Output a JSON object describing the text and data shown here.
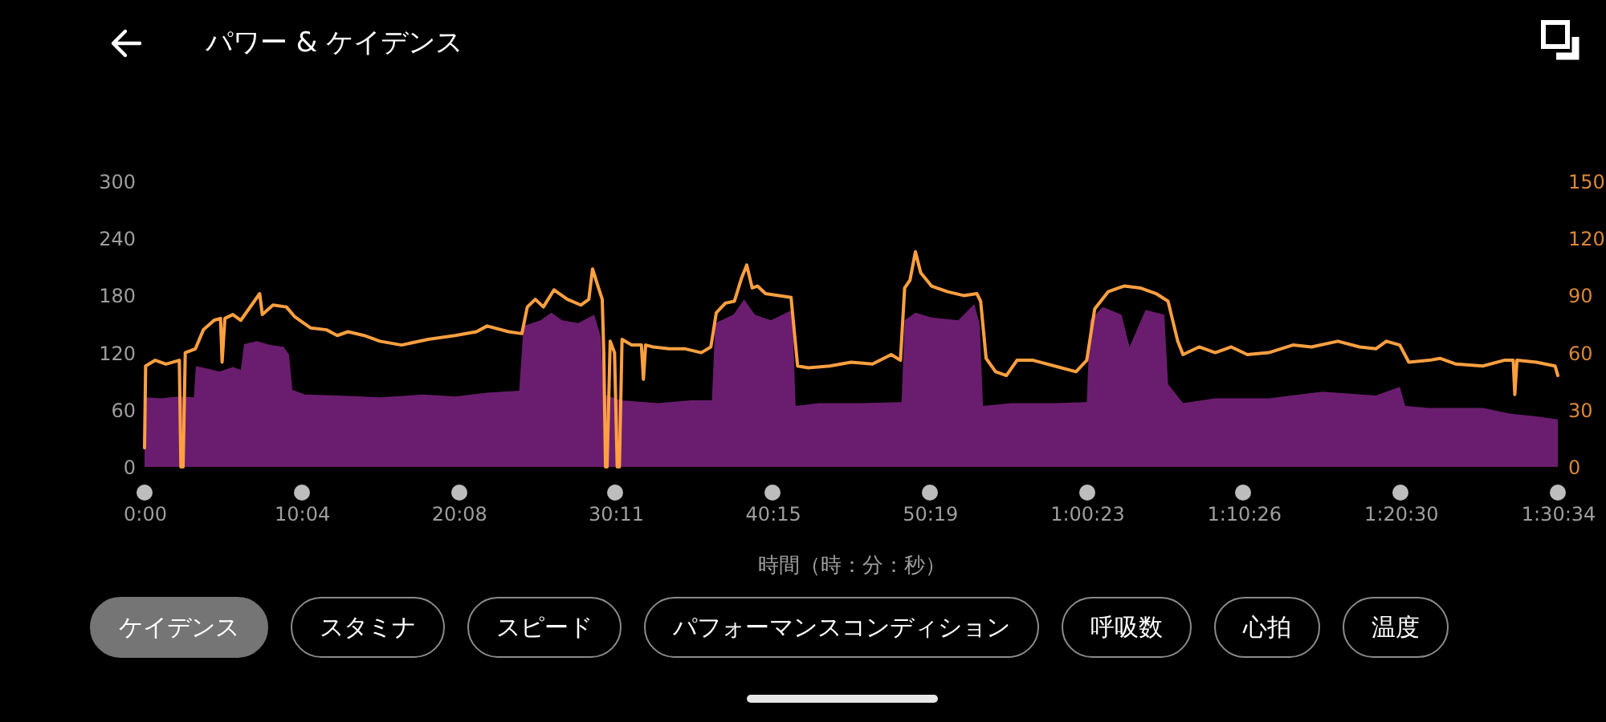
{
  "chart_data": {
    "type": "area",
    "title": "パワー & ケイデンス",
    "xlabel": "時間（時：分：秒）",
    "annotations": [
      "ケイデンス",
      "スタミナ",
      "スピード",
      "パフォーマンスコンディション",
      "呼吸数",
      "心拍",
      "温度"
    ],
    "xlim": [
      0,
      90.5667
    ],
    "xticks": [
      {
        "value": 0,
        "label": "0:00"
      },
      {
        "value": 10.0667,
        "label": "10:04"
      },
      {
        "value": 20.1333,
        "label": "20:08"
      },
      {
        "value": 30.1833,
        "label": "30:11"
      },
      {
        "value": 40.25,
        "label": "40:15"
      },
      {
        "value": 50.3167,
        "label": "50:19"
      },
      {
        "value": 60.3833,
        "label": "1:00:23"
      },
      {
        "value": 70.4333,
        "label": "1:10:26"
      },
      {
        "value": 80.5,
        "label": "1:20:30"
      },
      {
        "value": 90.5667,
        "label": "1:30:34"
      }
    ],
    "ylim": [
      0,
      300
    ],
    "yticks": [
      0,
      60,
      120,
      180,
      240,
      300
    ],
    "y2lim": [
      0,
      150
    ],
    "y2ticks": [
      0,
      30,
      60,
      90,
      120,
      150
    ],
    "series": [
      {
        "type": "area",
        "color": "#6a1d6e",
        "x": [
          0,
          0.07,
          1.03,
          2.23,
          3.16,
          3.29,
          4.12,
          4.8,
          5.66,
          6.17,
          6.38,
          7.2,
          8.06,
          8.92,
          9.26,
          9.47,
          10.29,
          12.35,
          15.09,
          17.84,
          19.9,
          21.95,
          24.01,
          24.29,
          25.39,
          26.07,
          26.76,
          27.79,
          28.82,
          29.23,
          29.43,
          30.53,
          32.93,
          34.99,
          36.36,
          36.57,
          37.74,
          38.42,
          39.11,
          40.14,
          41.51,
          41.72,
          43.23,
          45.97,
          48.51,
          48.71,
          49.4,
          50.43,
          52.15,
          53.17,
          53.52,
          53.73,
          55.58,
          58.33,
          60.38,
          60.59,
          61.41,
          62.61,
          63.12,
          64.15,
          65.35,
          65.59,
          66.55,
          68.61,
          72.04,
          75.47,
          78.9,
          80.44,
          80.79,
          82.33,
          85.76,
          87.48,
          89.19,
          90.5667
        ],
        "values": [
          20,
          73,
          72,
          74,
          73,
          106,
          103,
          100,
          105,
          102,
          129,
          132,
          128,
          126,
          118,
          81,
          76,
          75,
          73,
          76,
          74,
          78,
          80,
          148,
          154,
          162,
          154,
          151,
          160,
          137,
          76,
          70,
          67,
          70,
          70,
          151,
          160,
          176,
          160,
          154,
          165,
          64,
          67,
          67,
          68,
          154,
          162,
          157,
          154,
          171,
          150,
          64,
          67,
          67,
          68,
          154,
          168,
          160,
          126,
          165,
          160,
          87,
          67,
          72,
          72,
          79,
          75,
          84,
          64,
          62,
          62,
          56,
          53,
          50
        ]
      },
      {
        "type": "line",
        "axis": "y2",
        "color": "#ffa040",
        "x": [
          0,
          0.07,
          0.69,
          1.37,
          2.23,
          2.33,
          2.47,
          2.61,
          3.26,
          3.77,
          4.46,
          4.87,
          4.97,
          5.15,
          5.66,
          6.17,
          6.86,
          7.38,
          7.55,
          8.23,
          9.09,
          9.61,
          10.63,
          11.66,
          12.35,
          13.04,
          14.07,
          15.09,
          16.47,
          18.18,
          19.9,
          21.27,
          21.95,
          23.33,
          24.18,
          24.53,
          25.04,
          25.56,
          26.24,
          27.1,
          27.96,
          28.47,
          28.71,
          29.09,
          29.33,
          29.43,
          29.54,
          29.64,
          29.84,
          30.12,
          30.29,
          30.43,
          30.6,
          31.22,
          31.84,
          31.97,
          32.11,
          32.59,
          33.62,
          34.65,
          35.68,
          36.29,
          36.64,
          37.22,
          37.8,
          38.25,
          38.59,
          38.94,
          39.28,
          39.79,
          40.65,
          41.43,
          41.85,
          42.54,
          43.91,
          45.28,
          46.65,
          47.85,
          48.44,
          48.71,
          49.05,
          49.4,
          49.74,
          50.43,
          51.46,
          52.49,
          53.34,
          53.58,
          53.93,
          54.54,
          55.23,
          55.91,
          56.94,
          58.32,
          59.69,
          60.38,
          60.89,
          61.75,
          62.43,
          62.78,
          63.8,
          64.83,
          65.59,
          66.21,
          66.55,
          67.58,
          68.61,
          69.64,
          70.67,
          72.04,
          73.59,
          74.78,
          76.47,
          77.87,
          78.9,
          79.58,
          80.44,
          81.02,
          82.33,
          83.01,
          84.04,
          85.76,
          87.13,
          87.71,
          87.81,
          87.95,
          89.19,
          90.39,
          90.5667
        ],
        "values": [
          10,
          53,
          56,
          54,
          56,
          0,
          0,
          60,
          62,
          72,
          77,
          78,
          55,
          78,
          80,
          77,
          85,
          91,
          80,
          85,
          84,
          79,
          73,
          72,
          69,
          71,
          69,
          66,
          64,
          67,
          69,
          71,
          74,
          71,
          70,
          84,
          88,
          84,
          93,
          88,
          85,
          88,
          104,
          94,
          88,
          60,
          0,
          0,
          66,
          60,
          0,
          0,
          67,
          64,
          64,
          46,
          64,
          63,
          62,
          62,
          60,
          63,
          81,
          86,
          87,
          99,
          106,
          94,
          95,
          91,
          90,
          89,
          53,
          52,
          53,
          55,
          54,
          59,
          56,
          94,
          98,
          113,
          102,
          95,
          92,
          90,
          91,
          87,
          57,
          50,
          48,
          56,
          56,
          53,
          50,
          56,
          83,
          92,
          94,
          95,
          94,
          91,
          87,
          66,
          59,
          63,
          60,
          63,
          59,
          60,
          64,
          63,
          66,
          63,
          62,
          66,
          64,
          55,
          56,
          57,
          54,
          53,
          56,
          56,
          38,
          56,
          55,
          53,
          48
        ]
      }
    ]
  }
}
